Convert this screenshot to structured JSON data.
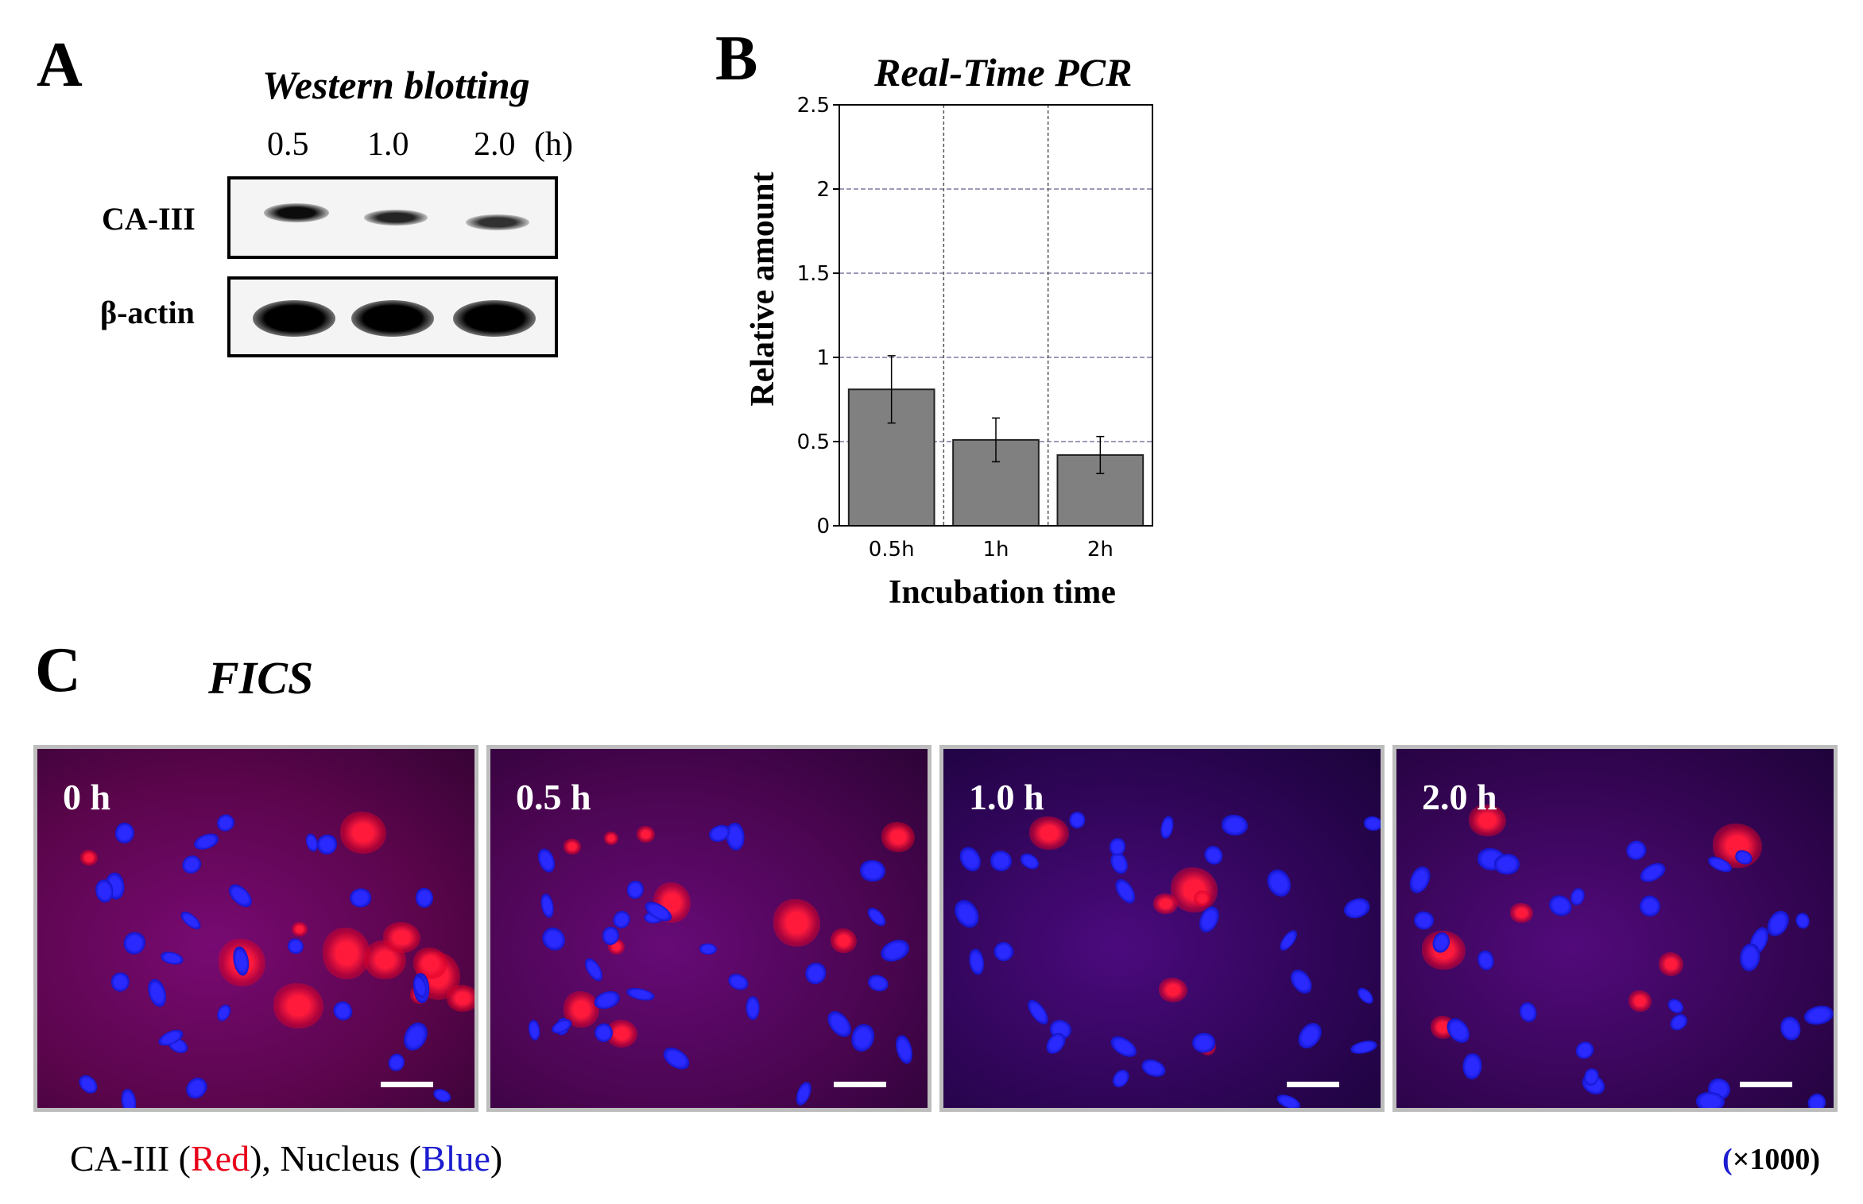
{
  "panel_a": {
    "letter": "A",
    "title": "Western blotting",
    "lanes": [
      "0.5",
      "1.0",
      "2.0"
    ],
    "unit": "(h)",
    "rows": [
      {
        "label": "CA-III",
        "bands": [
          0.95,
          0.7,
          0.6
        ]
      },
      {
        "label": "β-actin",
        "bands": [
          1.0,
          1.0,
          1.0
        ]
      }
    ]
  },
  "panel_b": {
    "letter": "B",
    "chart_data": {
      "type": "bar",
      "title": "Real-Time PCR",
      "xlabel": "Incubation time",
      "ylabel": "Relative amount",
      "categories": [
        "0.5h",
        "1h",
        "2h"
      ],
      "values": [
        0.81,
        0.51,
        0.42
      ],
      "errors": [
        0.2,
        0.13,
        0.11
      ],
      "ylim": [
        0,
        2.5
      ],
      "yticks": [
        "0",
        "0.5",
        "1",
        "1.5",
        "2",
        "2.5"
      ],
      "grid": true,
      "bar_color": "#808080"
    }
  },
  "panel_c": {
    "letter": "C",
    "title": "FICS",
    "images": [
      {
        "label": "0 h",
        "red_level": 1.0
      },
      {
        "label": "0.5 h",
        "red_level": 0.75
      },
      {
        "label": "1.0 h",
        "red_level": 0.35
      },
      {
        "label": "2.0 h",
        "red_level": 0.45
      }
    ],
    "caption": {
      "prefix": "CA-III (",
      "red_word": "Red",
      "middle": "), Nucleus (",
      "blue_word": "Blue",
      "suffix": ")"
    },
    "magnification": {
      "open": "(",
      "rest": "×1000)"
    },
    "colors": {
      "red": "#e8001a",
      "blue": "#1c1cd0"
    }
  }
}
